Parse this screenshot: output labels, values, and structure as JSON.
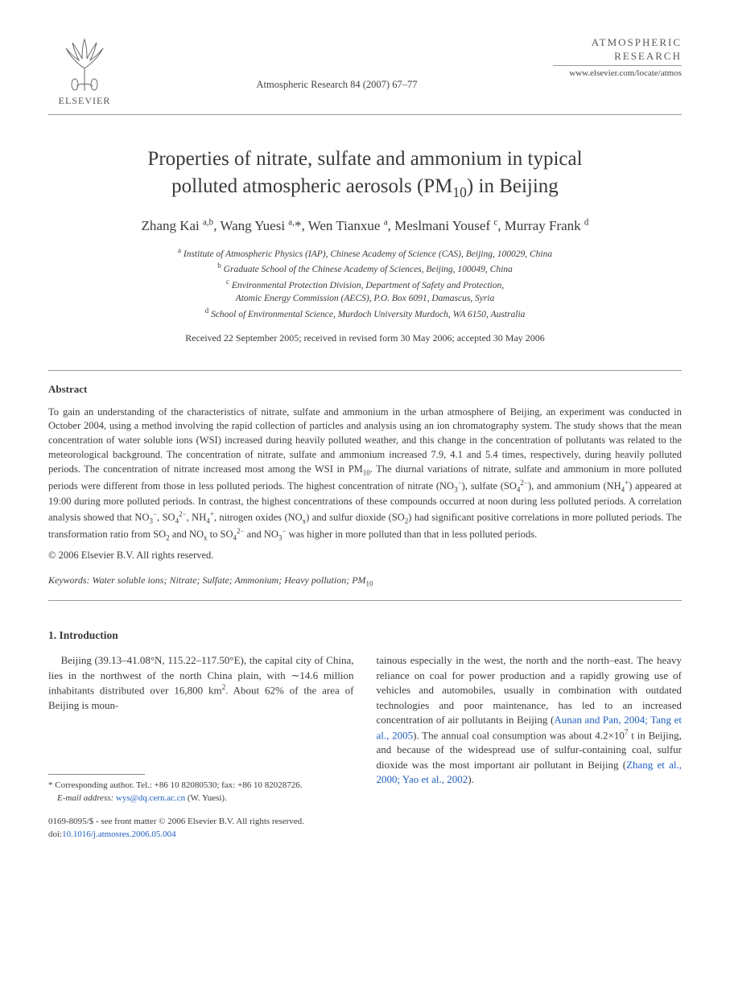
{
  "header": {
    "publisher_name": "ELSEVIER",
    "journal_ref": "Atmospheric Research 84 (2007) 67–77",
    "journal_name_line1": "ATMOSPHERIC",
    "journal_name_line2": "RESEARCH",
    "journal_url": "www.elsevier.com/locate/atmos"
  },
  "title_line1": "Properties of nitrate, sulfate and ammonium in typical",
  "title_line2_pre": "polluted atmospheric aerosols (PM",
  "title_line2_sub": "10",
  "title_line2_post": ") in Beijing",
  "authors_html": "Zhang Kai <sup>a,b</sup>, Wang Yuesi <sup>a,</sup>*, Wen Tianxue <sup>a</sup>, Meslmani Yousef <sup>c</sup>, Murray Frank <sup>d</sup>",
  "affiliations": {
    "a": "Institute of Atmospheric Physics (IAP), Chinese Academy of Science (CAS), Beijing, 100029, China",
    "b": "Graduate School of the Chinese Academy of Sciences, Beijing, 100049, China",
    "c1": "Environmental Protection Division, Department of Safety and Protection,",
    "c2": "Atomic Energy Commission (AECS), P.O. Box 6091, Damascus, Syria",
    "d": "School of Environmental Science, Murdoch University Murdoch, WA 6150, Australia"
  },
  "dates": "Received 22 September 2005; received in revised form 30 May 2006; accepted 30 May 2006",
  "abstract": {
    "heading": "Abstract",
    "body_html": "To gain an understanding of the characteristics of nitrate, sulfate and ammonium in the urban atmosphere of Beijing, an experiment was conducted in October 2004, using a method involving the rapid collection of particles and analysis using an ion chromatography system. The study shows that the mean concentration of water soluble ions (WSI) increased during heavily polluted weather, and this change in the concentration of pollutants was related to the meteorological background. The concentration of nitrate, sulfate and ammonium increased 7.9, 4.1 and 5.4 times, respectively, during heavily polluted periods. The concentration of nitrate increased most among the WSI in PM<sub>10</sub>. The diurnal variations of nitrate, sulfate and ammonium in more polluted periods were different from those in less polluted periods. The highest concentration of nitrate (NO<sub>3</sub><sup>−</sup>), sulfate (SO<sub>4</sub><sup>2−</sup>), and ammonium (NH<sub>4</sub><sup>+</sup>) appeared at 19:00 during more polluted periods. In contrast, the highest concentrations of these compounds occurred at noon during less polluted periods. A correlation analysis showed that NO<sub>3</sub><sup>−</sup>, SO<sub>4</sub><sup>2−</sup>, NH<sub>4</sub><sup>+</sup>, nitrogen oxides (NO<sub>x</sub>) and sulfur dioxide (SO<sub>2</sub>) had significant positive correlations in more polluted periods. The transformation ratio from SO<sub>2</sub> and NO<sub>x</sub> to SO<sub>4</sub><sup>2−</sup> and NO<sub>3</sub><sup>−</sup> was higher in more polluted than that in less polluted periods.",
    "copyright": "© 2006 Elsevier B.V. All rights reserved."
  },
  "keywords": {
    "label": "Keywords:",
    "text_html": " Water soluble ions; Nitrate; Sulfate; Ammonium; Heavy pollution; PM<sub>10</sub>"
  },
  "section1": {
    "heading": "1. Introduction",
    "col1_html": "Beijing (39.13–41.08°N, 115.22–117.50°E), the capital city of China, lies in the northwest of the north China plain, with ∼14.6 million inhabitants distributed over 16,800 km<sup>2</sup>. About 62% of the area of Beijing is moun-",
    "col2_html": "tainous especially in the west, the north and the north–east. The heavy reliance on coal for power production and a rapidly growing use of vehicles and automobiles, usually in combination with outdated technologies and poor maintenance, has led to an increased concentration of air pollutants in Beijing (<span class=\"link\">Aunan and Pan, 2004; Tang et al., 2005</span>). The annual coal consumption was about 4.2×10<sup>7</sup> t in Beijing, and because of the widespread use of sulfur-containing coal, sulfur dioxide was the most important air pollutant in Beijing (<span class=\"link\">Zhang et al., 2000; Yao et al., 2002</span>)."
  },
  "footnotes": {
    "corresponding": "* Corresponding author. Tel.: +86 10 82080530; fax: +86 10 82028726.",
    "email_label": "E-mail address:",
    "email_value": "wys@dq.cern.ac.cn",
    "email_who": "(W. Yuesi)."
  },
  "bottom": {
    "line1": "0169-8095/$ - see front matter © 2006 Elsevier B.V. All rights reserved.",
    "doi_label": "doi:",
    "doi_value": "10.1016/j.atmosres.2006.05.004"
  }
}
